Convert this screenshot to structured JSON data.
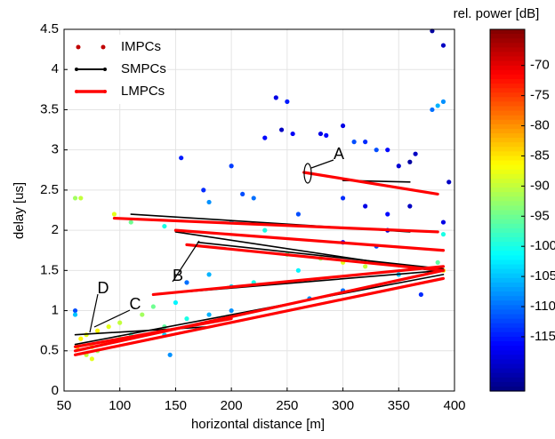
{
  "chart_data": {
    "type": "scatter",
    "xlabel": "horizontal distance [m]",
    "ylabel": "delay [us]",
    "colorbar_label": "rel. power [dB]",
    "colormap": "jet",
    "grid": true,
    "legend": "upper left",
    "xlim": [
      50,
      400
    ],
    "ylim": [
      0,
      4.5
    ],
    "xticks": [
      50,
      100,
      150,
      200,
      250,
      300,
      350,
      400
    ],
    "yticks": [
      0,
      0.5,
      1,
      1.5,
      2,
      2.5,
      3,
      3.5,
      4,
      4.5
    ],
    "clim": [
      -124,
      -64
    ],
    "cticks": [
      -70,
      -75,
      -80,
      -85,
      -90,
      -95,
      -100,
      -105,
      -110,
      -115
    ],
    "annotations": [
      "A",
      "B",
      "C",
      "D"
    ],
    "series": [
      {
        "name": "IMPCs",
        "color": "#c00000",
        "x": [
          240,
          250,
          255,
          245,
          230,
          280,
          285,
          310,
          320,
          300,
          330,
          340,
          350,
          360,
          365,
          380,
          385,
          390,
          380,
          390,
          155,
          200,
          210,
          220,
          180,
          175,
          200,
          230,
          260,
          300,
          320,
          340,
          360,
          390,
          395,
          60,
          65,
          95,
          110,
          140,
          250,
          280,
          300,
          320,
          260,
          220,
          200,
          180,
          160,
          150,
          130,
          120,
          100,
          90,
          80,
          70,
          65,
          62,
          75,
          70,
          80,
          85,
          100,
          110,
          140,
          160,
          180,
          200,
          140,
          145,
          60,
          60,
          75,
          390,
          390,
          385,
          350,
          330,
          340,
          300,
          370,
          300,
          270
        ],
        "values": [
          3.65,
          3.6,
          3.2,
          3.25,
          3.15,
          3.2,
          3.18,
          3.1,
          3.1,
          3.3,
          3.0,
          3.0,
          2.8,
          2.85,
          2.95,
          3.5,
          3.55,
          3.6,
          4.48,
          4.3,
          2.9,
          2.8,
          2.45,
          2.4,
          2.35,
          2.5,
          2.1,
          2.0,
          2.2,
          2.4,
          2.3,
          2.2,
          2.3,
          2.1,
          2.6,
          2.4,
          2.4,
          2.2,
          2.1,
          2.05,
          1.7,
          1.65,
          1.6,
          1.55,
          1.5,
          1.35,
          1.3,
          1.45,
          1.35,
          1.1,
          1.05,
          0.95,
          0.85,
          0.8,
          0.75,
          0.7,
          0.65,
          0.55,
          0.55,
          0.45,
          0.5,
          0.6,
          0.65,
          0.7,
          0.7,
          0.9,
          0.95,
          1.0,
          0.8,
          0.45,
          1.0,
          0.95,
          0.4,
          1.95,
          1.5,
          1.6,
          1.45,
          1.8,
          2.0,
          1.85,
          1.2,
          1.25,
          1.15
        ],
        "power": [
          -118,
          -115,
          -117,
          -120,
          -116,
          -118,
          -116,
          -112,
          -114,
          -118,
          -112,
          -116,
          -119,
          -122,
          -120,
          -110,
          -106,
          -108,
          -122,
          -120,
          -115,
          -113,
          -112,
          -110,
          -108,
          -114,
          -104,
          -100,
          -112,
          -114,
          -118,
          -116,
          -120,
          -118,
          -120,
          -92,
          -90,
          -88,
          -95,
          -100,
          -95,
          -92,
          -88,
          -90,
          -102,
          -100,
          -104,
          -106,
          -110,
          -102,
          -95,
          -92,
          -90,
          -88,
          -86,
          -88,
          -86,
          -84,
          -88,
          -90,
          -92,
          -86,
          -94,
          -98,
          -104,
          -100,
          -106,
          -108,
          -96,
          -108,
          -112,
          -105,
          -88,
          -100,
          -85,
          -96,
          -105,
          -112,
          -118,
          -116,
          -114,
          -110,
          -108
        ]
      },
      {
        "name": "SMPCs",
        "color": "#000000",
        "lines": [
          {
            "x": [
              110,
              360
            ],
            "values": [
              2.2,
              1.98
            ]
          },
          {
            "x": [
              150,
              380
            ],
            "values": [
              1.98,
              1.5
            ]
          },
          {
            "x": [
              300,
              360
            ],
            "values": [
              2.62,
              2.6
            ]
          },
          {
            "x": [
              130,
              390
            ],
            "values": [
              1.2,
              1.5
            ]
          },
          {
            "x": [
              60,
              390
            ],
            "values": [
              0.58,
              1.45
            ]
          },
          {
            "x": [
              60,
              180
            ],
            "values": [
              0.7,
              0.8
            ]
          },
          {
            "x": [
              170,
              390
            ],
            "values": [
              1.85,
              1.52
            ]
          }
        ]
      },
      {
        "name": "LMPCs",
        "color": "#ff0000",
        "lines": [
          {
            "x": [
              95,
              385
            ],
            "values": [
              2.15,
              1.98
            ]
          },
          {
            "x": [
              150,
              390
            ],
            "values": [
              2.0,
              1.75
            ]
          },
          {
            "x": [
              160,
              390
            ],
            "values": [
              1.82,
              1.5
            ]
          },
          {
            "x": [
              265,
              385
            ],
            "values": [
              2.72,
              2.45
            ]
          },
          {
            "x": [
              130,
              390
            ],
            "values": [
              1.2,
              1.55
            ]
          },
          {
            "x": [
              60,
              390
            ],
            "values": [
              0.5,
              1.5
            ]
          },
          {
            "x": [
              60,
              390
            ],
            "values": [
              0.45,
              1.4
            ]
          },
          {
            "x": [
              60,
              200
            ],
            "values": [
              0.55,
              0.9
            ]
          }
        ]
      }
    ]
  }
}
